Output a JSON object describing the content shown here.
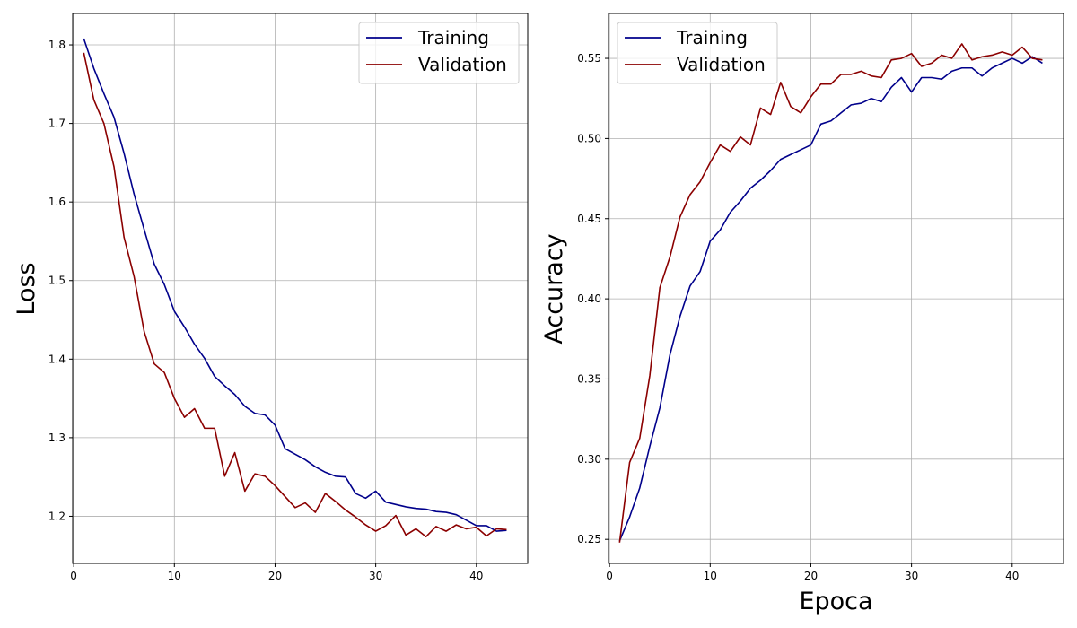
{
  "chart_data": [
    {
      "type": "line",
      "title": "",
      "xlabel": "",
      "ylabel": "Loss",
      "xlim": [
        -0.1,
        45.1
      ],
      "ylim": [
        1.14,
        1.84
      ],
      "xticks": [
        0,
        10,
        20,
        30,
        40
      ],
      "yticks": [
        1.2,
        1.3,
        1.4,
        1.5,
        1.6,
        1.7,
        1.8
      ],
      "ytick_labels": [
        "1.2",
        "1.3",
        "1.4",
        "1.5",
        "1.6",
        "1.7",
        "1.8"
      ],
      "grid": true,
      "legend_position": "upper right",
      "series": [
        {
          "name": "Training",
          "color": "#00008b",
          "x": [
            1,
            2,
            3,
            4,
            5,
            6,
            7,
            8,
            9,
            10,
            11,
            12,
            13,
            14,
            15,
            16,
            17,
            18,
            19,
            20,
            21,
            22,
            23,
            24,
            25,
            26,
            27,
            28,
            29,
            30,
            31,
            32,
            33,
            34,
            35,
            36,
            37,
            38,
            39,
            40,
            41,
            42,
            43
          ],
          "y": [
            1.808,
            1.77,
            1.738,
            1.708,
            1.662,
            1.61,
            1.565,
            1.521,
            1.495,
            1.461,
            1.441,
            1.419,
            1.401,
            1.378,
            1.366,
            1.355,
            1.34,
            1.331,
            1.329,
            1.316,
            1.286,
            1.279,
            1.272,
            1.263,
            1.256,
            1.251,
            1.25,
            1.229,
            1.223,
            1.232,
            1.218,
            1.215,
            1.212,
            1.21,
            1.209,
            1.206,
            1.205,
            1.202,
            1.195,
            1.188,
            1.188,
            1.181,
            1.182
          ]
        },
        {
          "name": "Validation",
          "color": "#8b0000",
          "x": [
            1,
            2,
            3,
            4,
            5,
            6,
            7,
            8,
            9,
            10,
            11,
            12,
            13,
            14,
            15,
            16,
            17,
            18,
            19,
            20,
            21,
            22,
            23,
            24,
            25,
            26,
            27,
            28,
            29,
            30,
            31,
            32,
            33,
            34,
            35,
            36,
            37,
            38,
            39,
            40,
            41,
            42,
            43
          ],
          "y": [
            1.79,
            1.73,
            1.7,
            1.645,
            1.555,
            1.505,
            1.435,
            1.394,
            1.383,
            1.35,
            1.326,
            1.337,
            1.312,
            1.312,
            1.251,
            1.281,
            1.232,
            1.254,
            1.251,
            1.239,
            1.225,
            1.211,
            1.217,
            1.205,
            1.229,
            1.219,
            1.208,
            1.199,
            1.189,
            1.181,
            1.188,
            1.201,
            1.176,
            1.184,
            1.174,
            1.187,
            1.181,
            1.189,
            1.184,
            1.186,
            1.175,
            1.184,
            1.183
          ]
        }
      ]
    },
    {
      "type": "line",
      "title": "",
      "xlabel": "Epoca",
      "ylabel": "Accuracy",
      "xlim": [
        -0.1,
        45.1
      ],
      "ylim": [
        0.235,
        0.578
      ],
      "xticks": [
        0,
        10,
        20,
        30,
        40
      ],
      "yticks": [
        0.25,
        0.3,
        0.35,
        0.4,
        0.45,
        0.5,
        0.55
      ],
      "ytick_labels": [
        "0.25",
        "0.30",
        "0.35",
        "0.40",
        "0.45",
        "0.50",
        "0.55"
      ],
      "grid": true,
      "legend_position": "upper left",
      "series": [
        {
          "name": "Training",
          "color": "#00008b",
          "x": [
            1,
            2,
            3,
            4,
            5,
            6,
            7,
            8,
            9,
            10,
            11,
            12,
            13,
            14,
            15,
            16,
            17,
            18,
            19,
            20,
            21,
            22,
            23,
            24,
            25,
            26,
            27,
            28,
            29,
            30,
            31,
            32,
            33,
            34,
            35,
            36,
            37,
            38,
            39,
            40,
            41,
            42,
            43
          ],
          "y": [
            0.249,
            0.264,
            0.282,
            0.308,
            0.332,
            0.365,
            0.389,
            0.408,
            0.417,
            0.436,
            0.443,
            0.454,
            0.461,
            0.469,
            0.474,
            0.48,
            0.487,
            0.49,
            0.493,
            0.496,
            0.509,
            0.511,
            0.516,
            0.521,
            0.522,
            0.525,
            0.523,
            0.532,
            0.538,
            0.529,
            0.538,
            0.538,
            0.537,
            0.542,
            0.544,
            0.544,
            0.539,
            0.544,
            0.547,
            0.55,
            0.547,
            0.551,
            0.547
          ]
        },
        {
          "name": "Validation",
          "color": "#8b0000",
          "x": [
            1,
            2,
            3,
            4,
            5,
            6,
            7,
            8,
            9,
            10,
            11,
            12,
            13,
            14,
            15,
            16,
            17,
            18,
            19,
            20,
            21,
            22,
            23,
            24,
            25,
            26,
            27,
            28,
            29,
            30,
            31,
            32,
            33,
            34,
            35,
            36,
            37,
            38,
            39,
            40,
            41,
            42,
            43
          ],
          "y": [
            0.248,
            0.298,
            0.313,
            0.352,
            0.407,
            0.426,
            0.451,
            0.465,
            0.473,
            0.485,
            0.496,
            0.492,
            0.501,
            0.496,
            0.519,
            0.515,
            0.535,
            0.52,
            0.516,
            0.526,
            0.534,
            0.534,
            0.54,
            0.54,
            0.542,
            0.539,
            0.538,
            0.549,
            0.55,
            0.553,
            0.545,
            0.547,
            0.552,
            0.55,
            0.559,
            0.549,
            0.551,
            0.552,
            0.554,
            0.552,
            0.557,
            0.55,
            0.549
          ]
        }
      ]
    }
  ]
}
